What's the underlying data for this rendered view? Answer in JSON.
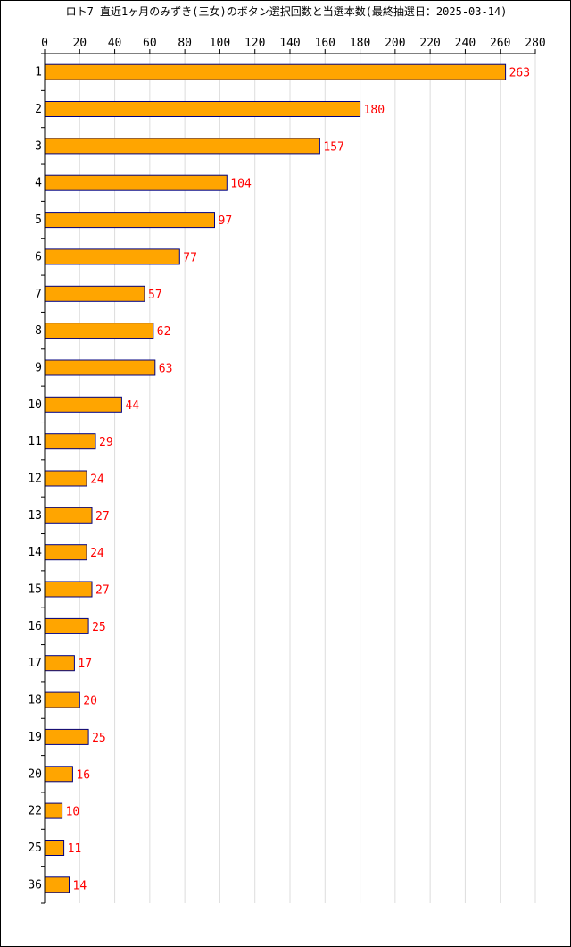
{
  "chart_data": {
    "type": "bar",
    "orientation": "horizontal",
    "title": "ロト7 直近1ヶ月のみずき(三女)のボタン選択回数と当選本数(最終抽選日：2025-03-14)",
    "xlabel": "",
    "ylabel": "",
    "xlim": [
      0,
      280
    ],
    "x_ticks": [
      "0",
      "20",
      "40",
      "60",
      "80",
      "100",
      "120",
      "140",
      "160",
      "180",
      "200",
      "220",
      "240",
      "260",
      "280"
    ],
    "grid": "vertical",
    "categories": [
      "1",
      "2",
      "3",
      "4",
      "5",
      "6",
      "7",
      "8",
      "9",
      "10",
      "11",
      "12",
      "13",
      "14",
      "15",
      "16",
      "17",
      "18",
      "19",
      "20",
      "22",
      "25",
      "36"
    ],
    "values": [
      263,
      180,
      157,
      104,
      97,
      77,
      57,
      62,
      63,
      44,
      29,
      24,
      27,
      24,
      27,
      25,
      17,
      20,
      25,
      16,
      10,
      11,
      14
    ],
    "colors": {
      "bar_fill": "#ffa500",
      "bar_stroke": "#000080",
      "data_label": "#ff0000",
      "grid": "#dddddd",
      "axis": "#000000"
    }
  }
}
